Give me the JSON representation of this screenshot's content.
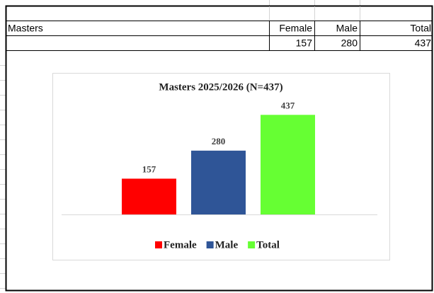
{
  "table": {
    "header": [
      "Masters",
      "Female",
      "Male",
      "Total"
    ],
    "values": [
      157,
      280,
      437
    ]
  },
  "chart_data": {
    "type": "bar",
    "title": "Masters 2025/2026 (N=437)",
    "series": [
      {
        "name": "Female",
        "color": "#ff0000",
        "values": [
          157
        ]
      },
      {
        "name": "Male",
        "color": "#2f5597",
        "values": [
          280
        ]
      },
      {
        "name": "Total",
        "color": "#66ff33",
        "values": [
          437
        ]
      }
    ],
    "ylim": [
      0,
      500
    ],
    "legend": "bottom",
    "data_labels": true
  }
}
